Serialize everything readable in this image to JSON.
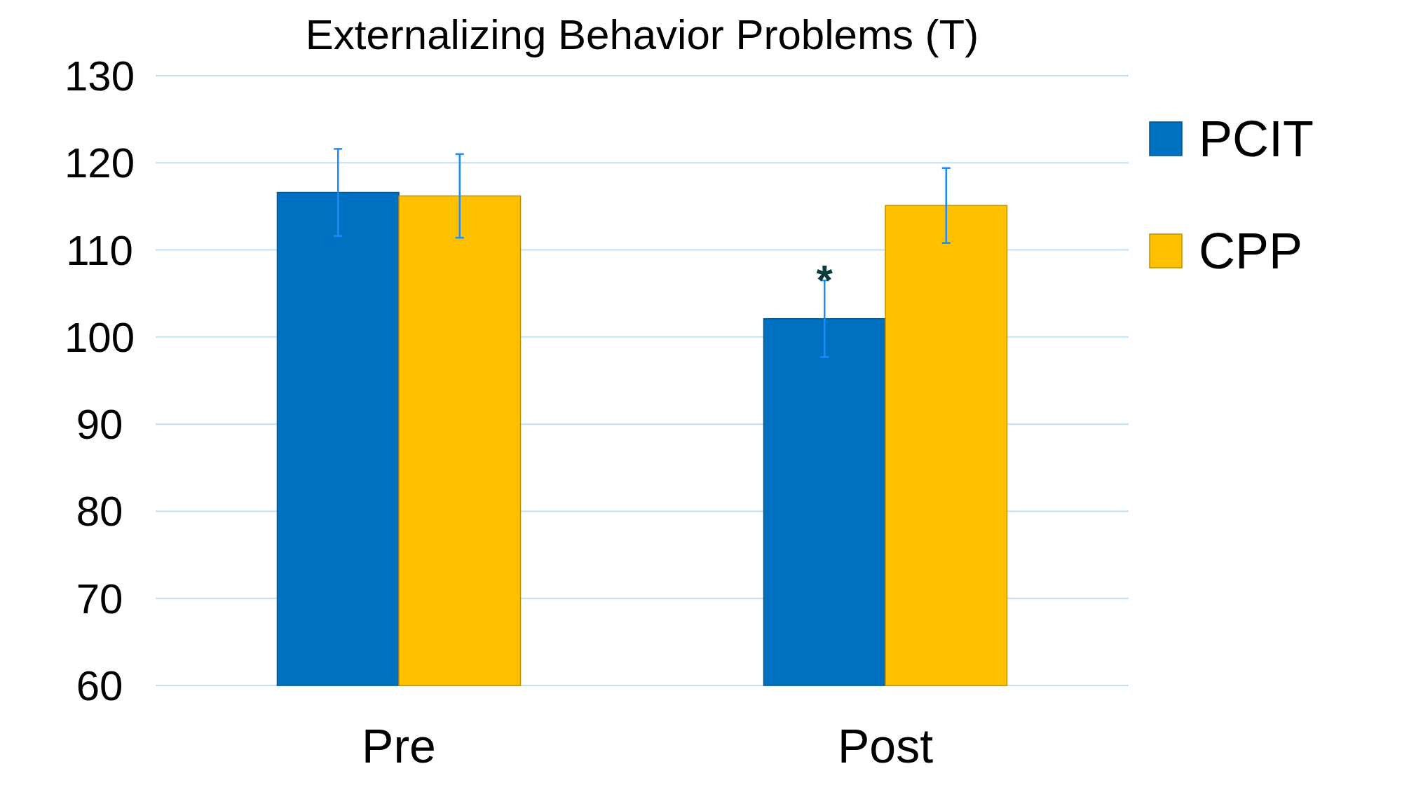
{
  "chart_data": {
    "type": "bar",
    "title": "Externalizing Behavior Problems (T)",
    "categories": [
      "Pre",
      "Post"
    ],
    "series": [
      {
        "name": "PCIT",
        "color": "#0070c0",
        "values": [
          116.6,
          102.1
        ],
        "errors": [
          5,
          4.4
        ]
      },
      {
        "name": "CPP",
        "color": "#ffc000",
        "values": [
          116.2,
          115.1
        ],
        "errors": [
          4.8,
          4.3
        ]
      }
    ],
    "ylim": [
      60,
      130
    ],
    "yticks": [
      60,
      70,
      80,
      90,
      100,
      110,
      120,
      130
    ],
    "grid": "y",
    "legend": "right",
    "annotations": [
      {
        "text": "*",
        "x": "Post",
        "y": 108.3
      }
    ]
  }
}
